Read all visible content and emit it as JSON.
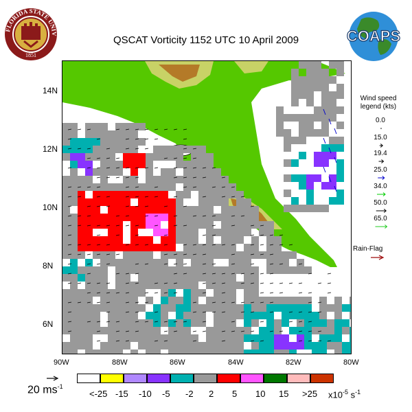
{
  "title": "QSCAT Vorticity 1152 UTC 10 April 2009",
  "logos": {
    "left": {
      "name": "fsu-seal",
      "text_top": "FLORIDA STATE UNIVERSITY",
      "year": "1851"
    },
    "right": {
      "name": "coaps-globe",
      "text": "COAPS"
    }
  },
  "lat_labels": [
    "14N",
    "12N",
    "10N",
    "8N",
    "6N"
  ],
  "lon_labels": [
    "90W",
    "88W",
    "86W",
    "84W",
    "82W",
    "80W"
  ],
  "wind_legend": {
    "title": "Wind speed legend (kts)",
    "title_line1": "Wind speed",
    "title_line2": "legend (kts)",
    "entries": [
      {
        "label": "0.0",
        "color": "#000000"
      },
      {
        "label": "15.0",
        "color": "#000000"
      },
      {
        "label": "19.4",
        "color": "#000000"
      },
      {
        "label": "25.0",
        "color": "#0000cc"
      },
      {
        "label": "34.0",
        "color": "#00cc00"
      },
      {
        "label": "50.0",
        "color": "#000000"
      },
      {
        "label": "65.0",
        "color": "#0000cc"
      }
    ],
    "last_arrow_color": "#22cc22"
  },
  "rain_flag": {
    "label": "Rain-Flag",
    "color": "#990000"
  },
  "scale": {
    "label": "20 ms",
    "exponent": "-1"
  },
  "colorbar": {
    "colors": [
      "#ffffff",
      "#ffff00",
      "#b088ff",
      "#8833ff",
      "#00b0b0",
      "#999999",
      "#ff0000",
      "#ff55ff",
      "#007700",
      "#ffbbbb",
      "#cc3300"
    ],
    "labels": [
      "<-25",
      "-15",
      "-10",
      "-5",
      "-2",
      "2",
      "5",
      "10",
      "15",
      ">25"
    ],
    "unit_base": "x10",
    "unit_exp1": "-5",
    "unit_s": " s",
    "unit_exp2": "-1"
  },
  "map_colors": {
    "land_low": "#55c800",
    "land_mid": "#c8d266",
    "land_high": "#b47a28",
    "land_peak": "#5a3214",
    "cell_gray": "#999999",
    "cell_cyan": "#00b0b0",
    "cell_red": "#ff0000",
    "cell_magenta": "#ff55ff",
    "cell_purple": "#8833ff"
  }
}
